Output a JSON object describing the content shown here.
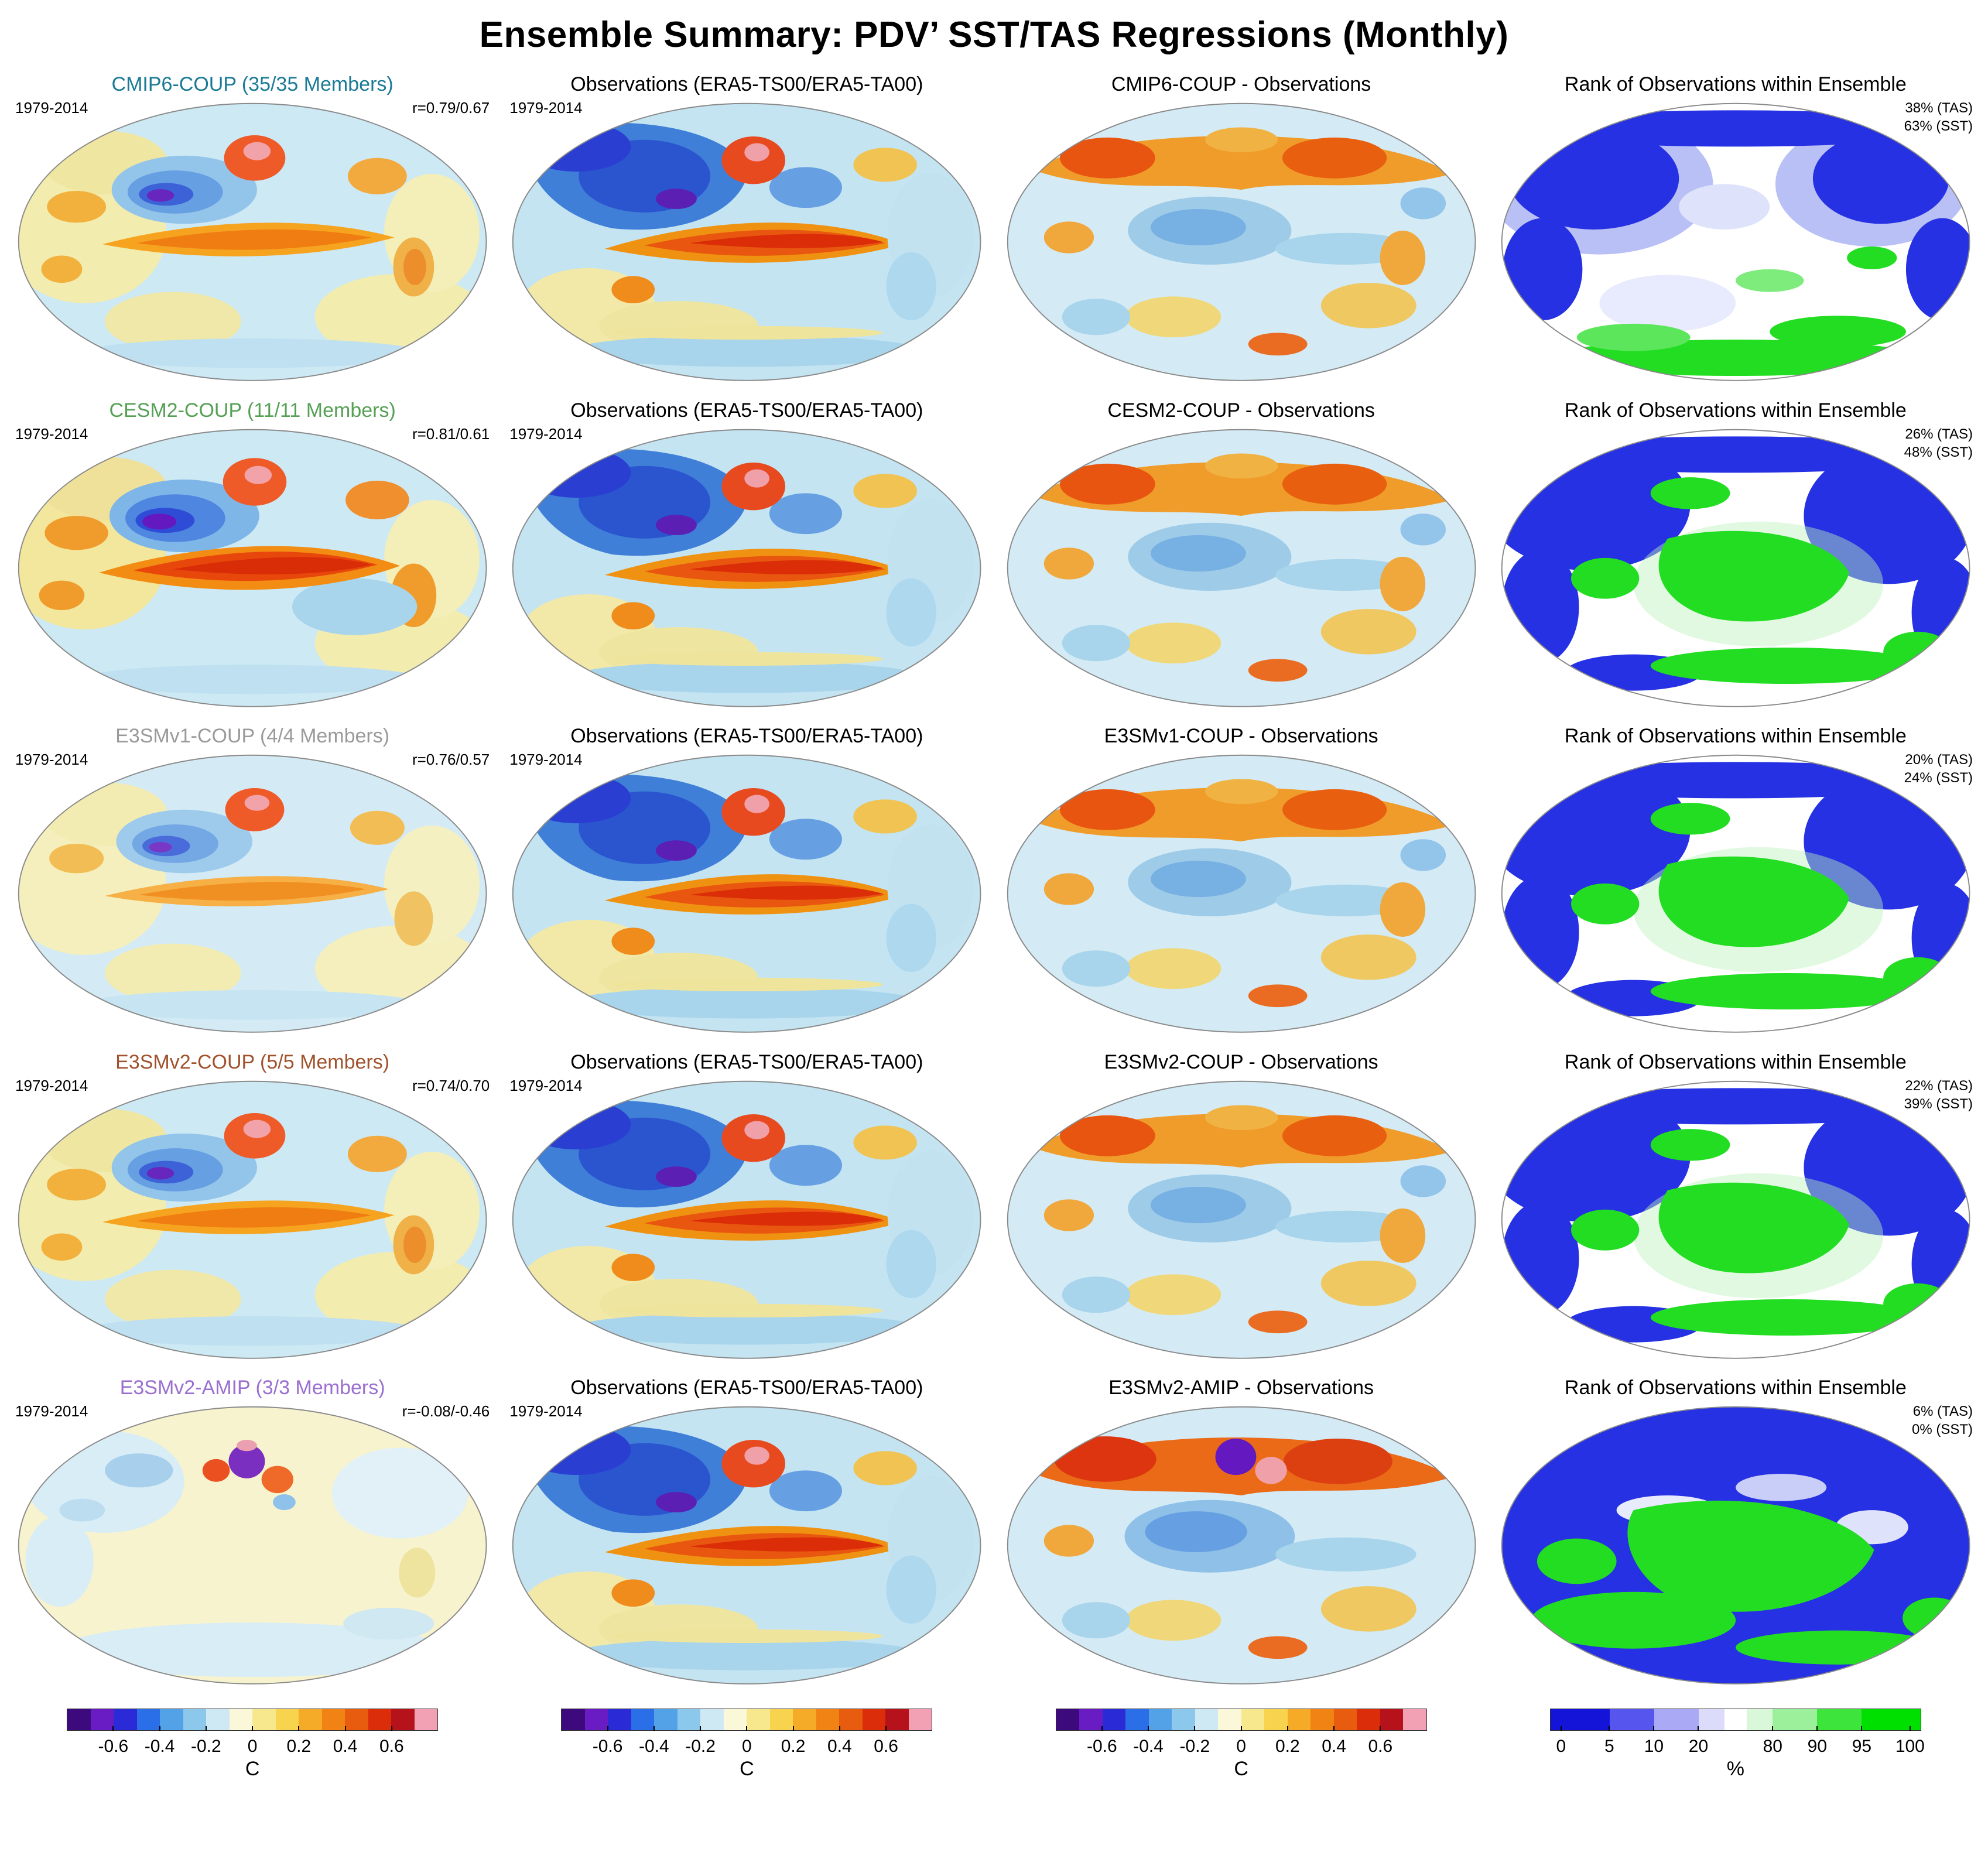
{
  "title": "Ensemble Summary: PDV’ SST/TAS Regressions (Monthly)",
  "rows": [
    {
      "model": "CMIP6-COUP",
      "members": "(35/35 Members)",
      "model_color": "#1a7a96",
      "period": "1979-2014",
      "r": "r=0.79/0.67",
      "obs_title": "Observations (ERA5-TS00/ERA5-TA00)",
      "diff_title": "CMIP6-COUP - Observations",
      "rank_title": "Rank of Observations within Ensemble",
      "rank_tas": "38% (TAS)",
      "rank_sst": "63% (SST)"
    },
    {
      "model": "CESM2-COUP",
      "members": "(11/11 Members)",
      "model_color": "#55a055",
      "period": "1979-2014",
      "r": "r=0.81/0.61",
      "obs_title": "Observations (ERA5-TS00/ERA5-TA00)",
      "diff_title": "CESM2-COUP - Observations",
      "rank_title": "Rank of Observations within Ensemble",
      "rank_tas": "26% (TAS)",
      "rank_sst": "48% (SST)"
    },
    {
      "model": "E3SMv1-COUP",
      "members": "(4/4 Members)",
      "model_color": "#9a9a9a",
      "period": "1979-2014",
      "r": "r=0.76/0.57",
      "obs_title": "Observations (ERA5-TS00/ERA5-TA00)",
      "diff_title": "E3SMv1-COUP - Observations",
      "rank_title": "Rank of Observations within Ensemble",
      "rank_tas": "20% (TAS)",
      "rank_sst": "24% (SST)"
    },
    {
      "model": "E3SMv2-COUP",
      "members": "(5/5 Members)",
      "model_color": "#a0522d",
      "period": "1979-2014",
      "r": "r=0.74/0.70",
      "obs_title": "Observations (ERA5-TS00/ERA5-TA00)",
      "diff_title": "E3SMv2-COUP - Observations",
      "rank_title": "Rank of Observations within Ensemble",
      "rank_tas": "22% (TAS)",
      "rank_sst": "39% (SST)"
    },
    {
      "model": "E3SMv2-AMIP",
      "members": "(3/3 Members)",
      "model_color": "#9a6fd0",
      "period": "1979-2014",
      "r": "r=-0.08/-0.46",
      "obs_title": "Observations (ERA5-TS00/ERA5-TA00)",
      "diff_title": "E3SMv2-AMIP - Observations",
      "rank_title": "Rank of Observations within Ensemble",
      "rank_tas": "6% (TAS)",
      "rank_sst": "0% (SST)"
    }
  ],
  "colorbars": {
    "temp": {
      "label": "C",
      "segments": [
        {
          "color": "#3d0a7e",
          "w": 0.0625
        },
        {
          "color": "#6a1cc4",
          "w": 0.0625
        },
        {
          "color": "#2a2ad6",
          "w": 0.0625
        },
        {
          "color": "#2a6fe8",
          "w": 0.0625
        },
        {
          "color": "#53a2e8",
          "w": 0.0625
        },
        {
          "color": "#8cc8ec",
          "w": 0.0625
        },
        {
          "color": "#cfe9f4",
          "w": 0.0625
        },
        {
          "color": "#fbf7d9",
          "w": 0.0625
        },
        {
          "color": "#f7e88e",
          "w": 0.0625
        },
        {
          "color": "#f8d44e",
          "w": 0.0625
        },
        {
          "color": "#f5ab27",
          "w": 0.0625
        },
        {
          "color": "#f08313",
          "w": 0.0625
        },
        {
          "color": "#e85c10",
          "w": 0.0625
        },
        {
          "color": "#dc2d0a",
          "w": 0.0625
        },
        {
          "color": "#b5121b",
          "w": 0.0625
        },
        {
          "color": "#f2a0b4",
          "w": 0.0625
        }
      ],
      "ticks": [
        {
          "label": "-0.6",
          "pos": 0.125
        },
        {
          "label": "-0.4",
          "pos": 0.25
        },
        {
          "label": "-0.2",
          "pos": 0.375
        },
        {
          "label": "0",
          "pos": 0.5
        },
        {
          "label": "0.2",
          "pos": 0.625
        },
        {
          "label": "0.4",
          "pos": 0.75
        },
        {
          "label": "0.6",
          "pos": 0.875
        }
      ]
    },
    "rank": {
      "label": "%",
      "segments": [
        {
          "color": "#1414d8",
          "w": 0.16
        },
        {
          "color": "#5656ee",
          "w": 0.12
        },
        {
          "color": "#a9a9f5",
          "w": 0.12
        },
        {
          "color": "#dcdcfa",
          "w": 0.07
        },
        {
          "color": "#ffffff",
          "w": 0.06
        },
        {
          "color": "#d9f7d9",
          "w": 0.07
        },
        {
          "color": "#9cf09c",
          "w": 0.12
        },
        {
          "color": "#3ce43c",
          "w": 0.12
        },
        {
          "color": "#00e000",
          "w": 0.16
        }
      ],
      "ticks": [
        {
          "label": "0",
          "pos": 0.03
        },
        {
          "label": "5",
          "pos": 0.16
        },
        {
          "label": "10",
          "pos": 0.28
        },
        {
          "label": "20",
          "pos": 0.4
        },
        {
          "label": "80",
          "pos": 0.6
        },
        {
          "label": "90",
          "pos": 0.72
        },
        {
          "label": "95",
          "pos": 0.84
        },
        {
          "label": "100",
          "pos": 0.97
        }
      ]
    }
  },
  "chart_data": {
    "type": "heatmap",
    "layout": "5 rows x 4 columns of global maps (Robinson-style projection), shared colorbars at bottom",
    "title": "Ensemble Summary: PDV’ SST/TAS Regressions (Monthly)",
    "period": "1979-2014",
    "columns": [
      "Model ensemble-mean PDV’ SST/TAS regression",
      "Observations (ERA5-TS00/ERA5-TA00)",
      "Model minus Observations",
      "Rank of Observations within Ensemble"
    ],
    "rows": [
      {
        "model": "CMIP6-COUP",
        "members": "35/35",
        "r_tas_sst": "0.79/0.67",
        "rank_tas_pct": 38,
        "rank_sst_pct": 63
      },
      {
        "model": "CESM2-COUP",
        "members": "11/11",
        "r_tas_sst": "0.81/0.61",
        "rank_tas_pct": 26,
        "rank_sst_pct": 48
      },
      {
        "model": "E3SMv1-COUP",
        "members": "4/4",
        "r_tas_sst": "0.76/0.57",
        "rank_tas_pct": 20,
        "rank_sst_pct": 24
      },
      {
        "model": "E3SMv2-COUP",
        "members": "5/5",
        "r_tas_sst": "0.74/0.70",
        "rank_tas_pct": 22,
        "rank_sst_pct": 39
      },
      {
        "model": "E3SMv2-AMIP",
        "members": "3/3",
        "r_tas_sst": "-0.08/-0.46",
        "rank_tas_pct": 6,
        "rank_sst_pct": 0
      }
    ],
    "temp_scale": {
      "units": "C",
      "ticks": [
        -0.6,
        -0.4,
        -0.2,
        0,
        0.2,
        0.4,
        0.6
      ],
      "colormap": "purple-blue-cream-yellow-orange-red-pink diverging"
    },
    "rank_scale": {
      "units": "%",
      "ticks": [
        0,
        5,
        10,
        20,
        80,
        90,
        95,
        100
      ],
      "colormap": "blue (low rank) - white (middle) - green (high rank)"
    }
  }
}
